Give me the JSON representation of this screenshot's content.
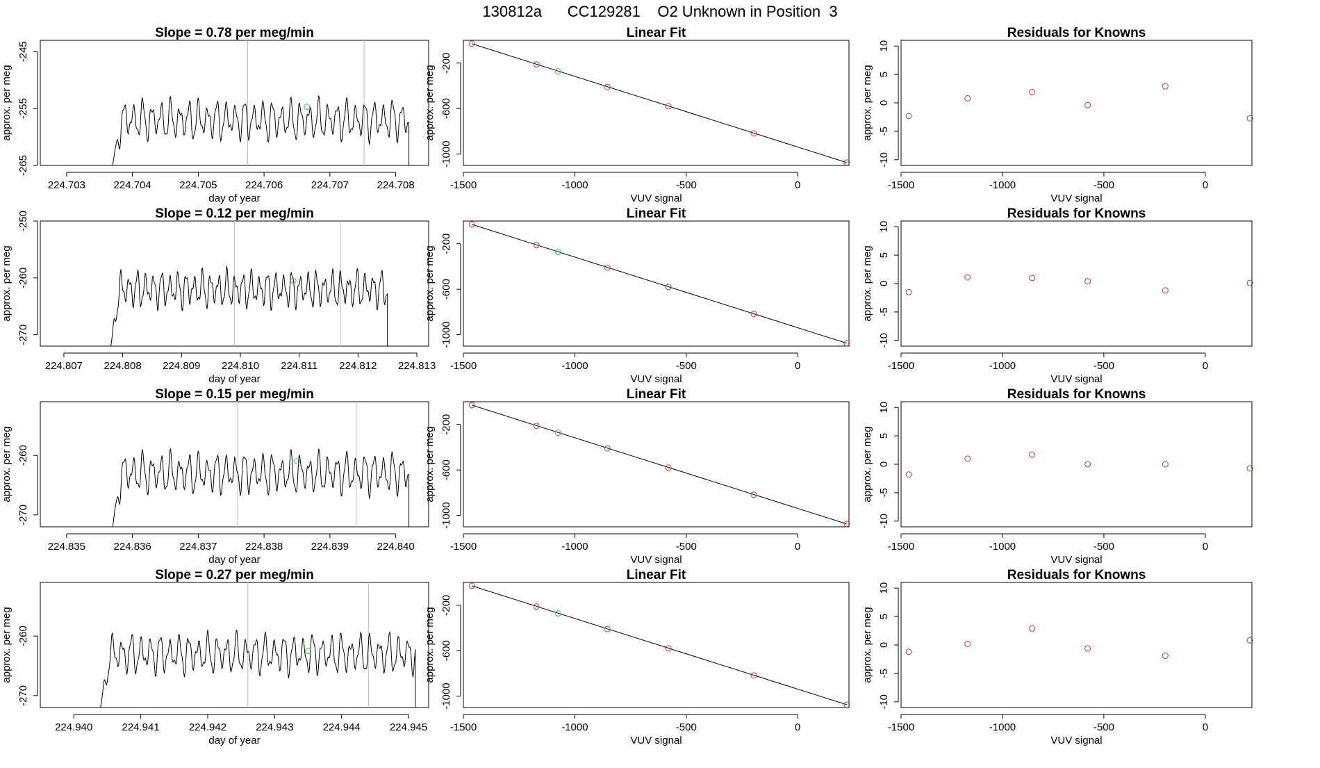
{
  "page_title": "130812a      CC129281    O2 Unknown in Position  3",
  "colors": {
    "line": "#000000",
    "known_marker": "#c0392b",
    "unknown_marker": "#2ecc40",
    "guide": "#bbbbbb",
    "fit": "#000000"
  },
  "chart_data": [
    {
      "type": "line",
      "title": "Slope =  0.78  per meg/min",
      "xlabel": "day of year",
      "ylabel": "approx. per meg",
      "xlim": [
        224.7026,
        224.7085
      ],
      "ylim": [
        -265,
        -243
      ],
      "xticks": [
        "224.703",
        "224.704",
        "224.705",
        "224.706",
        "224.707",
        "224.708"
      ],
      "yticks": [
        "-245",
        "-255",
        "-265"
      ],
      "vlines": [
        224.70575,
        224.70752
      ],
      "unknown_point": {
        "x": 224.70665,
        "y": -254.7
      },
      "series": [
        {
          "x_start": 224.7037,
          "x_end": 224.7082,
          "y_base": -257,
          "amplitude": 3.5,
          "cycles": 32,
          "baseline": -265
        }
      ]
    },
    {
      "type": "scatter",
      "title": "Linear Fit",
      "xlabel": "VUV signal",
      "ylabel": "approx. per meg",
      "xlim": [
        -1500,
        230
      ],
      "ylim": [
        -1100,
        0
      ],
      "xticks": [
        "-1500",
        "-1000",
        "-500",
        "0"
      ],
      "yticks": [
        "-200",
        "-600",
        "-1000"
      ],
      "fit_line": {
        "x": [
          -1462,
          220
        ],
        "y": [
          -30,
          -1075
        ]
      },
      "points": {
        "x": [
          -1462,
          -1172,
          -854,
          -580,
          -197,
          220
        ],
        "y": [
          -30,
          -212,
          -410,
          -580,
          -818,
          -1075
        ]
      },
      "unknown_point": {
        "x": -1075,
        "y": -273
      }
    },
    {
      "type": "scatter",
      "title": "Residuals for Knowns",
      "xlabel": "VUV signal",
      "ylabel": "approx. per meg",
      "xlim": [
        -1500,
        230
      ],
      "ylim": [
        -11,
        11
      ],
      "xticks": [
        "-1500",
        "-1000",
        "-500",
        "0"
      ],
      "yticks": [
        "10",
        "5",
        "0",
        "-5",
        "-10"
      ],
      "points": {
        "x": [
          -1462,
          -1172,
          -854,
          -580,
          -197,
          220
        ],
        "y": [
          -2.3,
          0.8,
          1.9,
          -0.4,
          2.9,
          -2.7
        ]
      }
    },
    {
      "type": "line",
      "title": "Slope =  0.12  per meg/min",
      "xlabel": "day of year",
      "ylabel": "approx. per meg",
      "xlim": [
        224.8066,
        224.8132
      ],
      "ylim": [
        -272,
        -250
      ],
      "xticks": [
        "224.807",
        "224.808",
        "224.809",
        "224.810",
        "224.811",
        "224.812",
        "224.813"
      ],
      "yticks": [
        "-250",
        "-260",
        "-270"
      ],
      "vlines": [
        224.8099,
        224.8117
      ],
      "unknown_point": {
        "x": 224.8109,
        "y": -260.5
      },
      "series": [
        {
          "x_start": 224.8078,
          "x_end": 224.8125,
          "y_base": -262,
          "amplitude": 3.2,
          "cycles": 34,
          "baseline": -272
        }
      ]
    },
    {
      "type": "scatter",
      "title": "Linear Fit",
      "xlabel": "VUV signal",
      "ylabel": "approx. per meg",
      "xlim": [
        -1500,
        230
      ],
      "ylim": [
        -1100,
        0
      ],
      "xticks": [
        "-1500",
        "-1000",
        "-500",
        "0"
      ],
      "yticks": [
        "-200",
        "-600",
        "-1000"
      ],
      "fit_line": {
        "x": [
          -1462,
          220
        ],
        "y": [
          -30,
          -1075
        ]
      },
      "points": {
        "x": [
          -1462,
          -1172,
          -854,
          -580,
          -197,
          220
        ],
        "y": [
          -30,
          -212,
          -410,
          -580,
          -818,
          -1075
        ]
      },
      "unknown_point": {
        "x": -1075,
        "y": -273
      }
    },
    {
      "type": "scatter",
      "title": "Residuals for Knowns",
      "xlabel": "VUV signal",
      "ylabel": "approx. per meg",
      "xlim": [
        -1500,
        230
      ],
      "ylim": [
        -11,
        11
      ],
      "xticks": [
        "-1500",
        "-1000",
        "-500",
        "0"
      ],
      "yticks": [
        "10",
        "5",
        "0",
        "-5",
        "-10"
      ],
      "points": {
        "x": [
          -1462,
          -1172,
          -854,
          -580,
          -197,
          220
        ],
        "y": [
          -1.5,
          1.1,
          1.0,
          0.4,
          -1.2,
          0.1
        ]
      }
    },
    {
      "type": "line",
      "title": "Slope =  0.15  per meg/min",
      "xlabel": "day of year",
      "ylabel": "approx. per meg",
      "xlim": [
        224.8346,
        224.8405
      ],
      "ylim": [
        -272,
        -251
      ],
      "xticks": [
        "224.835",
        "224.836",
        "224.837",
        "224.838",
        "224.839",
        "224.840"
      ],
      "yticks": [
        "-260",
        "-270"
      ],
      "vlines": [
        224.8376,
        224.8394
      ],
      "unknown_point": {
        "x": 224.8385,
        "y": -261
      },
      "series": [
        {
          "x_start": 224.8357,
          "x_end": 224.8402,
          "y_base": -263,
          "amplitude": 3.4,
          "cycles": 32,
          "baseline": -272
        }
      ]
    },
    {
      "type": "scatter",
      "title": "Linear Fit",
      "xlabel": "VUV signal",
      "ylabel": "approx. per meg",
      "xlim": [
        -1500,
        230
      ],
      "ylim": [
        -1100,
        0
      ],
      "xticks": [
        "-1500",
        "-1000",
        "-500",
        "0"
      ],
      "yticks": [
        "-200",
        "-600",
        "-1000"
      ],
      "fit_line": {
        "x": [
          -1462,
          220
        ],
        "y": [
          -30,
          -1075
        ]
      },
      "points": {
        "x": [
          -1462,
          -1172,
          -854,
          -580,
          -197,
          220
        ],
        "y": [
          -30,
          -212,
          -410,
          -580,
          -818,
          -1075
        ]
      },
      "unknown_point": {
        "x": -1075,
        "y": -273
      }
    },
    {
      "type": "scatter",
      "title": "Residuals for Knowns",
      "xlabel": "VUV signal",
      "ylabel": "approx. per meg",
      "xlim": [
        -1500,
        230
      ],
      "ylim": [
        -11,
        11
      ],
      "xticks": [
        "-1500",
        "-1000",
        "-500",
        "0"
      ],
      "yticks": [
        "10",
        "5",
        "0",
        "-5",
        "-10"
      ],
      "points": {
        "x": [
          -1462,
          -1172,
          -854,
          -580,
          -197,
          220
        ],
        "y": [
          -1.8,
          1.0,
          1.7,
          0.0,
          0.0,
          -0.7
        ]
      }
    },
    {
      "type": "line",
      "title": "Slope =  0.27  per meg/min",
      "xlabel": "day of year",
      "ylabel": "approx. per meg",
      "xlim": [
        224.9395,
        224.9453
      ],
      "ylim": [
        -272,
        -251
      ],
      "xticks": [
        "224.940",
        "224.941",
        "224.942",
        "224.943",
        "224.944",
        "224.945"
      ],
      "yticks": [
        "-260",
        "-270"
      ],
      "vlines": [
        224.9426,
        224.9444
      ],
      "unknown_point": {
        "x": 224.9435,
        "y": -262.5
      },
      "series": [
        {
          "x_start": 224.9404,
          "x_end": 224.9451,
          "y_base": -263,
          "amplitude": 3.3,
          "cycles": 33,
          "baseline": -272
        }
      ]
    },
    {
      "type": "scatter",
      "title": "Linear Fit",
      "xlabel": "VUV signal",
      "ylabel": "approx. per meg",
      "xlim": [
        -1500,
        230
      ],
      "ylim": [
        -1100,
        0
      ],
      "xticks": [
        "-1500",
        "-1000",
        "-500",
        "0"
      ],
      "yticks": [
        "-200",
        "-600",
        "-1000"
      ],
      "fit_line": {
        "x": [
          -1462,
          220
        ],
        "y": [
          -30,
          -1075
        ]
      },
      "points": {
        "x": [
          -1462,
          -1172,
          -854,
          -580,
          -197,
          220
        ],
        "y": [
          -30,
          -212,
          -410,
          -580,
          -818,
          -1075
        ]
      },
      "unknown_point": {
        "x": -1075,
        "y": -273
      }
    },
    {
      "type": "scatter",
      "title": "Residuals for Knowns",
      "xlabel": "VUV signal",
      "ylabel": "approx. per meg",
      "xlim": [
        -1500,
        230
      ],
      "ylim": [
        -11,
        11
      ],
      "xticks": [
        "-1500",
        "-1000",
        "-500",
        "0"
      ],
      "yticks": [
        "10",
        "5",
        "0",
        "-5",
        "-10"
      ],
      "points": {
        "x": [
          -1462,
          -1172,
          -854,
          -580,
          -197,
          220
        ],
        "y": [
          -1.2,
          0.2,
          2.9,
          -0.6,
          -1.9,
          0.8
        ]
      }
    }
  ]
}
